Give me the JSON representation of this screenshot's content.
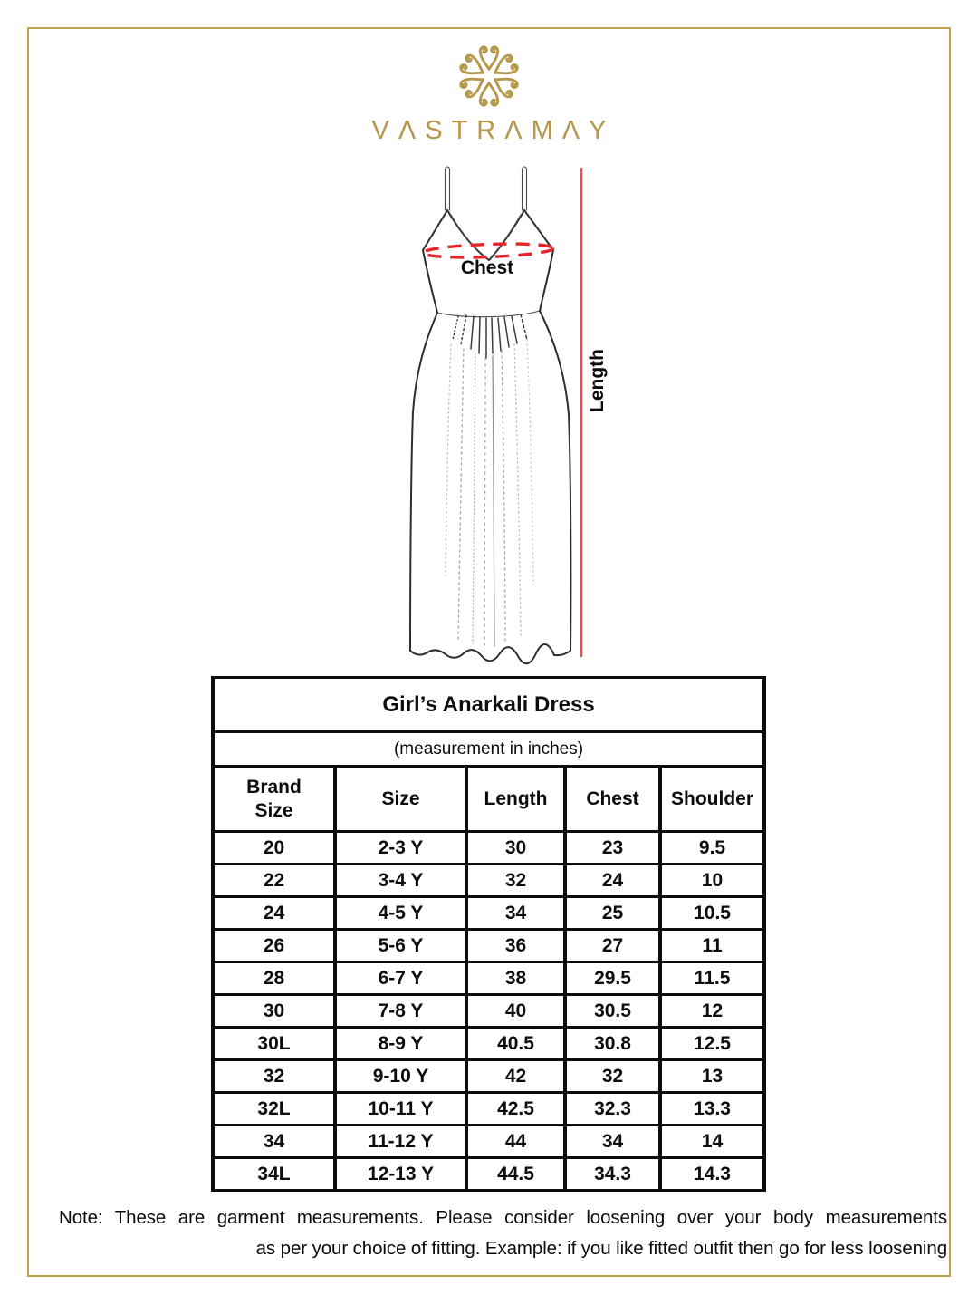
{
  "brand": {
    "name": "VASTRAMAY",
    "wordmark_display": "VΛSTRΛMΛY",
    "gold_color": "#b6984a"
  },
  "diagram": {
    "chest_label": "Chest",
    "length_label": "Length",
    "chest_line_color": "#e3242b",
    "length_line_color": "#ee4a4e"
  },
  "size_chart": {
    "title": "Girl’s Anarkali Dress",
    "subtitle": "(measurement in inches)",
    "columns": [
      "Brand\nSize",
      "Size",
      "Length",
      "Chest",
      "Shoulder"
    ],
    "rows": [
      [
        "20",
        "2-3 Y",
        "30",
        "23",
        "9.5"
      ],
      [
        "22",
        "3-4 Y",
        "32",
        "24",
        "10"
      ],
      [
        "24",
        "4-5 Y",
        "34",
        "25",
        "10.5"
      ],
      [
        "26",
        "5-6 Y",
        "36",
        "27",
        "11"
      ],
      [
        "28",
        "6-7 Y",
        "38",
        "29.5",
        "11.5"
      ],
      [
        "30",
        "7-8 Y",
        "40",
        "30.5",
        "12"
      ],
      [
        "30L",
        "8-9 Y",
        "40.5",
        "30.8",
        "12.5"
      ],
      [
        "32",
        "9-10 Y",
        "42",
        "32",
        "13"
      ],
      [
        "32L",
        "10-11 Y",
        "42.5",
        "32.3",
        "13.3"
      ],
      [
        "34",
        "11-12 Y",
        "44",
        "34",
        "14"
      ],
      [
        "34L",
        "12-13 Y",
        "44.5",
        "34.3",
        "14.3"
      ]
    ]
  },
  "note": {
    "line1": "Note: These are garment measurements. Please consider loosening over your body measurements",
    "line2": "as per your choice of fitting. Example: if you like fitted outfit then go for less loosening"
  }
}
